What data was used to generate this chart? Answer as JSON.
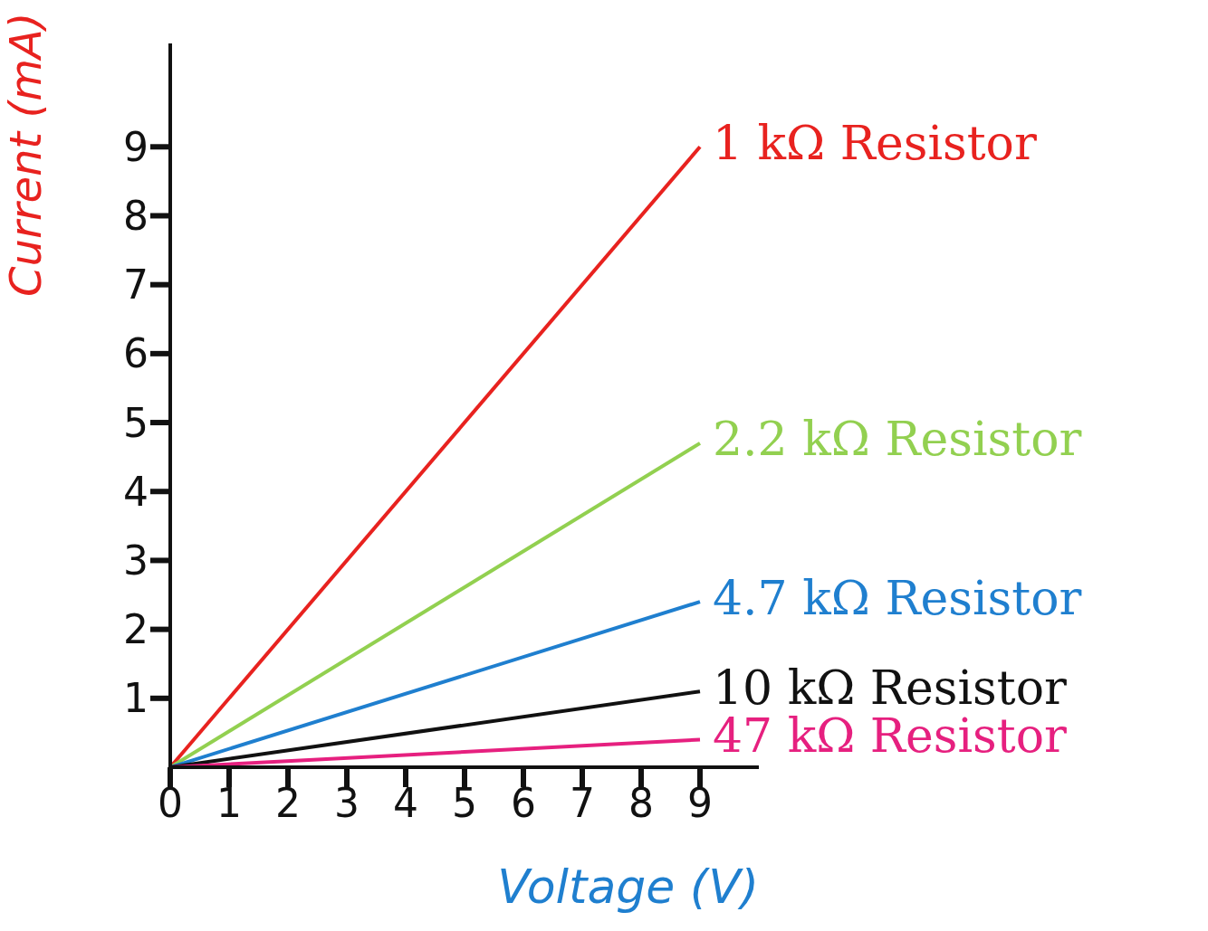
{
  "chart_data": {
    "type": "line",
    "xlabel": "Voltage (V)",
    "ylabel": "Current (mA)",
    "x": [
      0,
      9
    ],
    "series": [
      {
        "name": "1 kΩ Resistor",
        "color": "#e8221f",
        "values": [
          0,
          9
        ]
      },
      {
        "name": "2.2 kΩ Resistor",
        "color": "#92d050",
        "values": [
          0,
          4.7
        ]
      },
      {
        "name": "4.7 kΩ Resistor",
        "color": "#1f7fcf",
        "values": [
          0,
          2.4
        ]
      },
      {
        "name": "10 kΩ Resistor",
        "color": "#111111",
        "values": [
          0,
          1.1
        ]
      },
      {
        "name": "47 kΩ Resistor",
        "color": "#e6207f",
        "values": [
          0,
          0.4
        ]
      }
    ],
    "xlim": [
      0,
      10
    ],
    "xticks": [
      0,
      1,
      2,
      3,
      4,
      5,
      6,
      7,
      8,
      9
    ],
    "ylim": [
      0,
      10.5
    ],
    "yticks": [
      1,
      2,
      3,
      4,
      5,
      6,
      7,
      8,
      9
    ],
    "grid": false,
    "legend": false,
    "marker": "none",
    "line_style": "solid"
  }
}
